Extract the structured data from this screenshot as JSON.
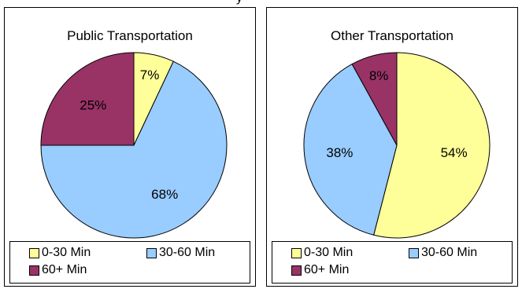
{
  "clipped_top_text": "y",
  "colors": {
    "0-30": "#ffff99",
    "30-60": "#99ccff",
    "60+": "#993366"
  },
  "chart_data": [
    {
      "type": "pie",
      "title": "Public Transportation",
      "labels": [
        "0-30 Min",
        "30-60 Min",
        "60+ Min"
      ],
      "values": [
        7,
        68,
        25
      ],
      "value_labels": [
        "7%",
        "68%",
        "25%"
      ],
      "colors": [
        "#ffff99",
        "#99ccff",
        "#993366"
      ],
      "legend": [
        "0-30 Min",
        "30-60 Min",
        "60+ Min"
      ],
      "legend_position": "bottom"
    },
    {
      "type": "pie",
      "title": "Other Transportation",
      "labels": [
        "0-30 Min",
        "30-60 Min",
        "60+ Min"
      ],
      "values": [
        54,
        38,
        8
      ],
      "value_labels": [
        "54%",
        "38%",
        "8%"
      ],
      "colors": [
        "#ffff99",
        "#99ccff",
        "#993366"
      ],
      "legend": [
        "0-30 Min",
        "30-60 Min",
        "60+ Min"
      ],
      "legend_position": "bottom"
    }
  ]
}
